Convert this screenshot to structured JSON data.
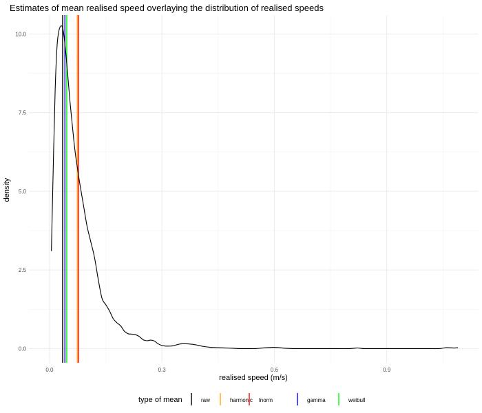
{
  "chart_data": {
    "type": "line",
    "title": "Estimates of mean realised speed overlaying the distribution of realised speeds",
    "xlabel": "realised speed (m/s)",
    "ylabel": "density",
    "xlim": [
      -0.055,
      1.145
    ],
    "ylim": [
      -0.45,
      10.6
    ],
    "x_ticks": [
      0.0,
      0.3,
      0.6,
      0.9
    ],
    "x_tick_labels": [
      "0.0",
      "0.3",
      "0.6",
      "0.9"
    ],
    "y_ticks": [
      0.0,
      2.5,
      5.0,
      7.5,
      10.0
    ],
    "y_tick_labels": [
      "0.0",
      "2.5",
      "5.0",
      "7.5",
      "10.0"
    ],
    "grid": true,
    "density_curve": {
      "x": [
        0.005,
        0.01,
        0.015,
        0.02,
        0.025,
        0.03,
        0.035,
        0.04,
        0.045,
        0.05,
        0.055,
        0.06,
        0.065,
        0.07,
        0.075,
        0.08,
        0.09,
        0.1,
        0.11,
        0.12,
        0.13,
        0.14,
        0.15,
        0.16,
        0.17,
        0.18,
        0.19,
        0.2,
        0.21,
        0.22,
        0.23,
        0.24,
        0.25,
        0.26,
        0.27,
        0.28,
        0.29,
        0.3,
        0.31,
        0.32,
        0.33,
        0.35,
        0.37,
        0.39,
        0.41,
        0.43,
        0.45,
        0.47,
        0.49,
        0.51,
        0.53,
        0.55,
        0.57,
        0.6,
        0.63,
        0.65,
        0.66,
        0.67,
        0.68,
        0.7,
        0.75,
        0.8,
        0.82,
        0.83,
        0.84,
        0.86,
        0.9,
        0.95,
        1.0,
        1.04,
        1.06,
        1.08,
        1.09
      ],
      "y": [
        3.1,
        5.8,
        8.2,
        9.6,
        10.1,
        10.25,
        10.2,
        9.8,
        9.2,
        8.5,
        7.8,
        7.2,
        6.6,
        6.1,
        5.7,
        5.3,
        4.6,
        3.9,
        3.4,
        2.9,
        2.2,
        1.6,
        1.4,
        1.2,
        0.95,
        0.82,
        0.72,
        0.55,
        0.47,
        0.46,
        0.44,
        0.38,
        0.28,
        0.25,
        0.27,
        0.24,
        0.15,
        0.1,
        0.08,
        0.08,
        0.09,
        0.15,
        0.15,
        0.12,
        0.07,
        0.04,
        0.03,
        0.02,
        0.01,
        0.0,
        0.0,
        0.0,
        0.02,
        0.04,
        0.01,
        0.0,
        0.0,
        0.0,
        0.0,
        0.0,
        0.0,
        0.0,
        0.02,
        0.01,
        0.0,
        0.0,
        0.0,
        0.0,
        0.0,
        0.0,
        0.03,
        0.02,
        0.03
      ],
      "color": "#000000"
    },
    "mean_lines": [
      {
        "name": "raw",
        "x": 0.035,
        "color": "#000000"
      },
      {
        "name": "harmonic",
        "x": 0.074,
        "color": "#FFA500"
      },
      {
        "name": "lnorm",
        "x": 0.077,
        "color": "#FF0000"
      },
      {
        "name": "gamma",
        "x": 0.041,
        "color": "#0000FF"
      },
      {
        "name": "weibull",
        "x": 0.046,
        "color": "#00FF00"
      }
    ],
    "legend": {
      "title": "type of mean",
      "position": "bottom",
      "entries": [
        {
          "label": "raw",
          "color": "#000000"
        },
        {
          "label": "harmonic",
          "color": "#FFA500"
        },
        {
          "label": "lnorm",
          "color": "#FF0000"
        },
        {
          "label": "gamma",
          "color": "#0000FF"
        },
        {
          "label": "weibull",
          "color": "#00FF00"
        }
      ]
    }
  }
}
